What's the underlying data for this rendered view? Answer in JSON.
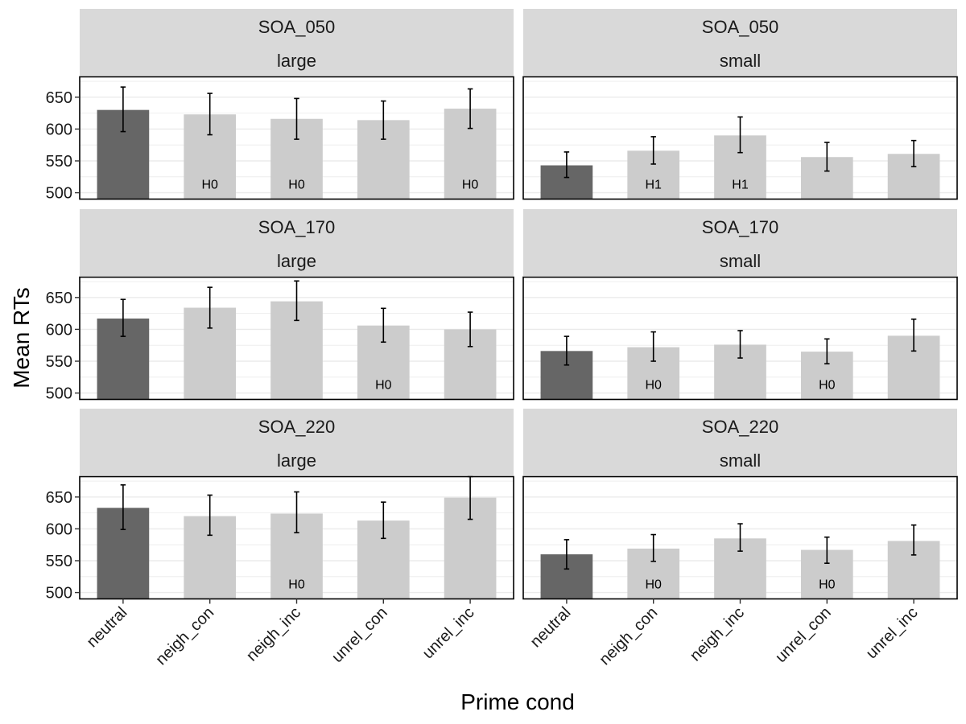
{
  "chart_data": {
    "type": "bar",
    "xlabel": "Prime cond",
    "ylabel": "Mean RTs",
    "categories": [
      "neutral",
      "neigh_con",
      "neigh_inc",
      "unrel_con",
      "unrel_inc"
    ],
    "y_ticks": [
      500,
      550,
      600,
      650
    ],
    "ylim": [
      490,
      682
    ],
    "grid": true,
    "colors": {
      "neutral": "#666666",
      "other": "#cccccc",
      "strip": "#d9d9d9",
      "grid": "#ebebeb"
    },
    "panels": [
      {
        "soa": "SOA_050",
        "size": "large",
        "values": [
          630,
          623,
          616,
          614,
          632
        ],
        "err_low": [
          596,
          591,
          584,
          584,
          601
        ],
        "err_high": [
          666,
          656,
          648,
          644,
          663
        ],
        "labels": [
          "",
          "H0",
          "H0",
          "",
          "H0"
        ]
      },
      {
        "soa": "SOA_050",
        "size": "small",
        "values": [
          543,
          566,
          590,
          556,
          561
        ],
        "err_low": [
          524,
          545,
          563,
          534,
          541
        ],
        "err_high": [
          564,
          588,
          619,
          579,
          582
        ],
        "labels": [
          "",
          "H1",
          "H1",
          "",
          ""
        ]
      },
      {
        "soa": "SOA_170",
        "size": "large",
        "values": [
          617,
          634,
          644,
          606,
          600
        ],
        "err_low": [
          589,
          602,
          614,
          580,
          573
        ],
        "err_high": [
          647,
          666,
          676,
          633,
          627
        ],
        "labels": [
          "",
          "",
          "",
          "H0",
          ""
        ]
      },
      {
        "soa": "SOA_170",
        "size": "small",
        "values": [
          566,
          572,
          576,
          565,
          590
        ],
        "err_low": [
          544,
          550,
          555,
          546,
          566
        ],
        "err_high": [
          589,
          596,
          598,
          585,
          616
        ],
        "labels": [
          "",
          "H0",
          "",
          "H0",
          ""
        ]
      },
      {
        "soa": "SOA_220",
        "size": "large",
        "values": [
          633,
          620,
          624,
          613,
          649
        ],
        "err_low": [
          599,
          590,
          594,
          585,
          615
        ],
        "err_high": [
          669,
          653,
          658,
          642,
          682
        ],
        "labels": [
          "",
          "",
          "H0",
          "",
          ""
        ]
      },
      {
        "soa": "SOA_220",
        "size": "small",
        "values": [
          560,
          569,
          585,
          567,
          581
        ],
        "err_low": [
          537,
          549,
          565,
          546,
          559
        ],
        "err_high": [
          583,
          591,
          608,
          587,
          606
        ],
        "labels": [
          "",
          "H0",
          "",
          "H0",
          ""
        ]
      }
    ]
  }
}
